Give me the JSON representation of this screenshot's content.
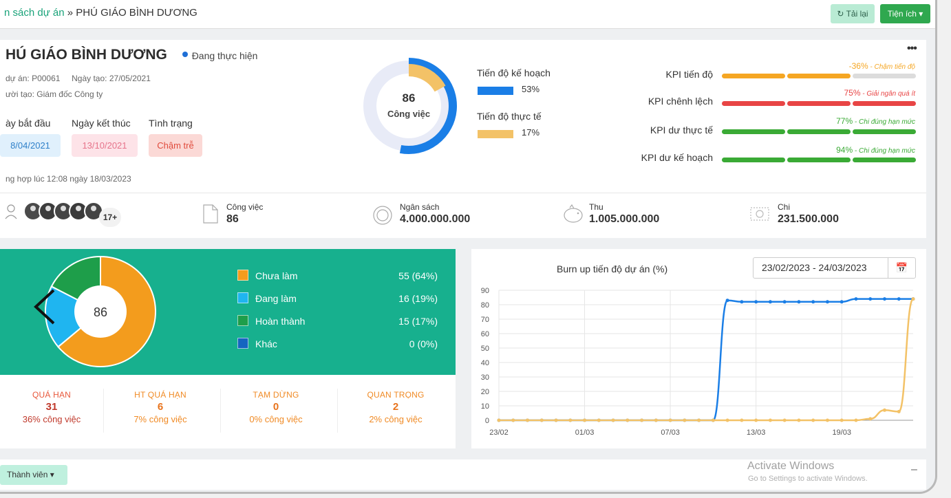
{
  "breadcrumb": {
    "parent": "n sách dự án",
    "separator": "»",
    "current": "PHÚ GIÁO BÌNH DƯƠNG"
  },
  "toolbar": {
    "reload_label": "Tải lại",
    "utilities_label": "Tiện ích"
  },
  "project": {
    "title": "HÚ GIÁO BÌNH DƯƠNG",
    "status": "Đang thực hiện",
    "code_label": "dự án:",
    "code": "P00061",
    "created_label": "Ngày tạo:",
    "created": "27/05/2021",
    "creator_label": "ười tạo:",
    "creator": "Giám đốc Công ty",
    "start_label": "ày bắt đầu",
    "end_label": "Ngày kết thúc",
    "state_label": "Tình trạng",
    "start_date": "8/04/2021",
    "end_date": "13/10/2021",
    "state_value": "Chậm trễ",
    "sync_text": "ng hợp lúc 12:08 ngày 18/03/2023",
    "more": "•••"
  },
  "progress": {
    "center_value": "86",
    "center_label": "Công việc",
    "plan_label": "Tiến độ kế hoạch",
    "plan_value": "53%",
    "plan_fraction": 0.53,
    "actual_label": "Tiến độ thực tế",
    "actual_value": "17%",
    "actual_fraction": 0.17,
    "plan_color": "#1a7ee6",
    "actual_color": "#f3c267"
  },
  "kpis": [
    {
      "label": "KPI tiến độ",
      "value": "-36%",
      "note": "Chậm tiến độ",
      "color": "#f5a623",
      "fill_segments": 2
    },
    {
      "label": "KPI chênh lệch",
      "value": "75%",
      "note": "Giải ngân quá ít",
      "color": "#e84545",
      "fill_segments": 3
    },
    {
      "label": "KPI dư thực tế",
      "value": "77%",
      "note": "Chi đúng hạn mức",
      "color": "#3aaa35",
      "fill_segments": 3
    },
    {
      "label": "KPI dư kế hoạch",
      "value": "94%",
      "note": "Chi đúng hạn mức",
      "color": "#3aaa35",
      "fill_segments": 3
    }
  ],
  "stats": {
    "members_extra": "17+",
    "tasks_label": "Công việc",
    "tasks_value": "86",
    "budget_label": "Ngân sách",
    "budget_value": "4.000.000.000",
    "income_label": "Thu",
    "income_value": "1.005.000.000",
    "expense_label": "Chi",
    "expense_value": "231.500.000"
  },
  "task_breakdown": {
    "center": "86",
    "items": [
      {
        "label": "Chưa làm",
        "count": "55",
        "pct": "(64%)",
        "value": 55,
        "color": "#f39c1d"
      },
      {
        "label": "Đang làm",
        "count": "16",
        "pct": "(19%)",
        "value": 16,
        "color": "#1fb5f0"
      },
      {
        "label": "Hoàn thành",
        "count": "15",
        "pct": "(17%)",
        "value": 15,
        "color": "#1e9e4a"
      },
      {
        "label": "Khác",
        "count": "0",
        "pct": "(0%)",
        "value": 0,
        "color": "#1565c0"
      }
    ]
  },
  "summary": [
    {
      "label": "QUÁ HẠN",
      "value": "31",
      "sub": "36% công việc"
    },
    {
      "label": "HT QUÁ HẠN",
      "value": "6",
      "sub": "7% công việc"
    },
    {
      "label": "TẠM DỪNG",
      "value": "0",
      "sub": "0% công việc"
    },
    {
      "label": "QUAN TRỌNG",
      "value": "2",
      "sub": "2% công việc"
    }
  ],
  "chart_data": {
    "type": "line",
    "title": "Burn up tiến độ dự án (%)",
    "date_range": "23/02/2023 - 24/03/2023",
    "ylim": [
      0,
      90
    ],
    "yticks": [
      0,
      10,
      20,
      30,
      40,
      50,
      60,
      70,
      80,
      90
    ],
    "x_labels": [
      {
        "day": 0,
        "label": "23/02"
      },
      {
        "day": 6,
        "label": "01/03"
      },
      {
        "day": 12,
        "label": "07/03"
      },
      {
        "day": 18,
        "label": "13/03"
      },
      {
        "day": 24,
        "label": "19/03"
      }
    ],
    "x_range": [
      0,
      29
    ],
    "series": [
      {
        "name": "Kế hoạch",
        "color": "#1a7ee6",
        "points": [
          [
            0,
            0
          ],
          [
            1,
            0
          ],
          [
            2,
            0
          ],
          [
            3,
            0
          ],
          [
            4,
            0
          ],
          [
            5,
            0
          ],
          [
            6,
            0
          ],
          [
            7,
            0
          ],
          [
            8,
            0
          ],
          [
            9,
            0
          ],
          [
            10,
            0
          ],
          [
            11,
            0
          ],
          [
            12,
            0
          ],
          [
            13,
            0
          ],
          [
            14,
            0
          ],
          [
            15,
            0
          ],
          [
            16,
            83
          ],
          [
            17,
            82
          ],
          [
            18,
            82
          ],
          [
            19,
            82
          ],
          [
            20,
            82
          ],
          [
            21,
            82
          ],
          [
            22,
            82
          ],
          [
            23,
            82
          ],
          [
            24,
            82
          ],
          [
            25,
            84
          ],
          [
            26,
            84
          ],
          [
            27,
            84
          ],
          [
            28,
            84
          ],
          [
            29,
            84
          ]
        ]
      },
      {
        "name": "Thực tế",
        "color": "#f3c267",
        "points": [
          [
            0,
            0
          ],
          [
            1,
            0
          ],
          [
            2,
            0
          ],
          [
            3,
            0
          ],
          [
            4,
            0
          ],
          [
            5,
            0
          ],
          [
            6,
            0
          ],
          [
            7,
            0
          ],
          [
            8,
            0
          ],
          [
            9,
            0
          ],
          [
            10,
            0
          ],
          [
            11,
            0
          ],
          [
            12,
            0
          ],
          [
            13,
            0
          ],
          [
            14,
            0
          ],
          [
            15,
            0
          ],
          [
            16,
            0
          ],
          [
            17,
            0
          ],
          [
            18,
            0
          ],
          [
            19,
            0
          ],
          [
            20,
            0
          ],
          [
            21,
            0
          ],
          [
            22,
            0
          ],
          [
            23,
            0
          ],
          [
            24,
            0
          ],
          [
            25,
            0
          ],
          [
            26,
            1
          ],
          [
            27,
            7
          ],
          [
            28,
            6
          ],
          [
            29,
            84
          ]
        ]
      }
    ]
  },
  "members_section": {
    "button_label": "Thành viên"
  },
  "watermark": {
    "title": "Activate Windows",
    "subtitle": "Go to Settings to activate Windows."
  }
}
